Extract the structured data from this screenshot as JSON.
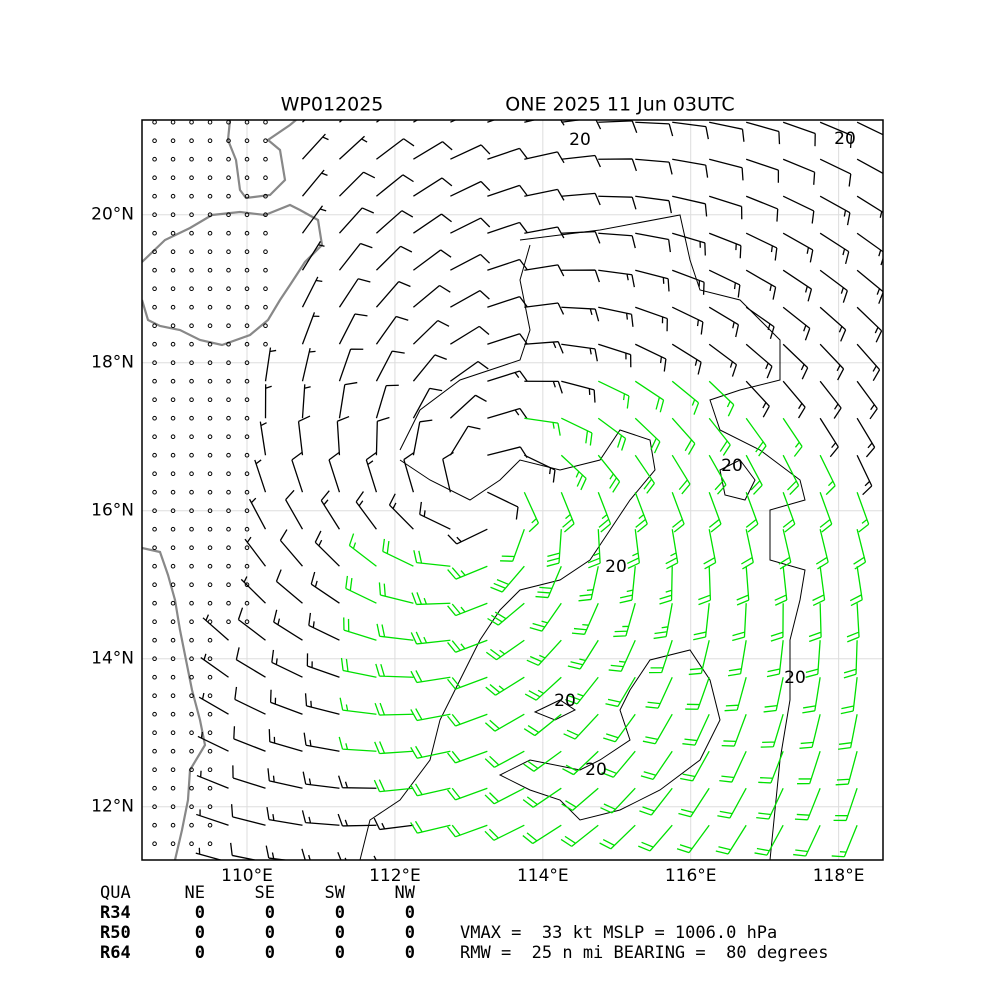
{
  "map": {
    "title_left": "WP012025",
    "title_right": "ONE 2025 11 Jun 03UTC",
    "lon_range": [
      108.58,
      118.6
    ],
    "lat_range": [
      11.28,
      21.28
    ],
    "lon_ticks": [
      {
        "value": 110,
        "label": "110°E"
      },
      {
        "value": 112,
        "label": "112°E"
      },
      {
        "value": 114,
        "label": "114°E"
      },
      {
        "value": 116,
        "label": "116°E"
      },
      {
        "value": 118,
        "label": "118°E"
      }
    ],
    "lat_ticks": [
      {
        "value": 12,
        "label": "12°N"
      },
      {
        "value": 14,
        "label": "14°N"
      },
      {
        "value": 16,
        "label": "16°N"
      },
      {
        "value": 18,
        "label": "18°N"
      },
      {
        "value": 20,
        "label": "20°N"
      }
    ],
    "contour_labels": [
      "20",
      "20",
      "20",
      "20",
      "20",
      "20",
      "20"
    ]
  },
  "table": {
    "header": [
      "QUA",
      "NE",
      "SE",
      "SW",
      "NW"
    ],
    "rows": [
      [
        "R34",
        "0",
        "0",
        "0",
        "0"
      ],
      [
        "R50",
        "0",
        "0",
        "0",
        "0"
      ],
      [
        "R64",
        "0",
        "0",
        "0",
        "0"
      ]
    ]
  },
  "info": [
    "VMAX =  33 kt MSLP = 1006.0 hPa",
    "RMW =  25 n mi BEARING =  80 degrees"
  ]
}
